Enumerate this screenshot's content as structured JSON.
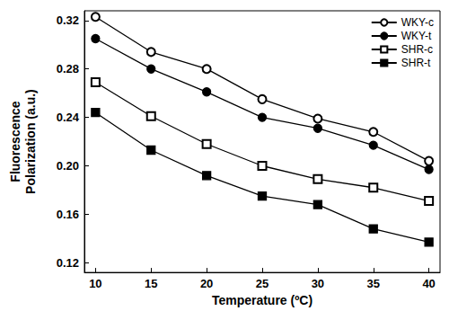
{
  "chart_data": {
    "type": "line",
    "x_label": "Temperature (ºC)",
    "y_label": "Fluorescence\nPolarization (a.u.)",
    "x": [
      10,
      15,
      20,
      25,
      30,
      35,
      40
    ],
    "xlim": [
      9,
      41
    ],
    "xticks": [
      10,
      15,
      20,
      25,
      30,
      35,
      40
    ],
    "ylim": [
      0.112,
      0.328
    ],
    "yticks": [
      0.12,
      0.16,
      {
        "value": 0.2,
        "label": "0.20"
      },
      0.24,
      0.28,
      0.32
    ],
    "grid": false,
    "legend": "upper right",
    "series": [
      {
        "name": "WKY-c",
        "color": "#000000",
        "marker": "open_circle",
        "line_style": "solid",
        "values": [
          0.323,
          0.294,
          0.28,
          0.255,
          0.239,
          0.228,
          0.204
        ]
      },
      {
        "name": "WKY-t",
        "color": "#000000",
        "marker": "circle",
        "line_style": "solid",
        "values": [
          0.305,
          0.28,
          0.261,
          0.24,
          0.231,
          0.217,
          0.197
        ]
      },
      {
        "name": "SHR-c",
        "color": "#000000",
        "marker": "open_square",
        "line_style": "solid",
        "values": [
          0.269,
          0.241,
          0.218,
          0.2,
          0.189,
          0.182,
          0.171
        ]
      },
      {
        "name": "SHR-t",
        "color": "#000000",
        "marker": "square",
        "line_style": "solid",
        "values": [
          0.244,
          0.213,
          0.192,
          0.175,
          0.168,
          0.148,
          0.137
        ]
      }
    ]
  }
}
